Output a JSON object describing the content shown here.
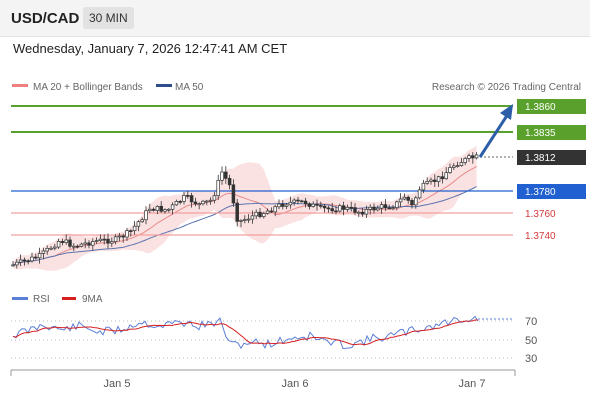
{
  "header": {
    "pair": "USD/CAD",
    "timeframe": "30 MIN"
  },
  "datetime": "Wednesday, January 7, 2026 12:47:41 AM CET",
  "legend": {
    "ma20": {
      "label": "MA 20 + Bollinger Bands",
      "color": "#f08080"
    },
    "ma50": {
      "label": "MA 50",
      "color": "#2c4f8c"
    },
    "source": "Research © 2026 Trading Central"
  },
  "levels": {
    "r2": "1.3860",
    "r1": "1.3835",
    "current": "1.3812",
    "pivot": "1.3780",
    "s1": "1.3760",
    "s2": "1.3740"
  },
  "rsi_legend": {
    "rsi": "RSI",
    "ma": "9MA"
  },
  "rsi_axis": [
    "70",
    "50",
    "30"
  ],
  "x_axis": [
    "Jan 5",
    "Jan 6",
    "Jan 7"
  ],
  "colors": {
    "green": "#5aa02c",
    "blue": "#2060d0",
    "red": "#d63a3a",
    "dark": "#333333"
  }
}
